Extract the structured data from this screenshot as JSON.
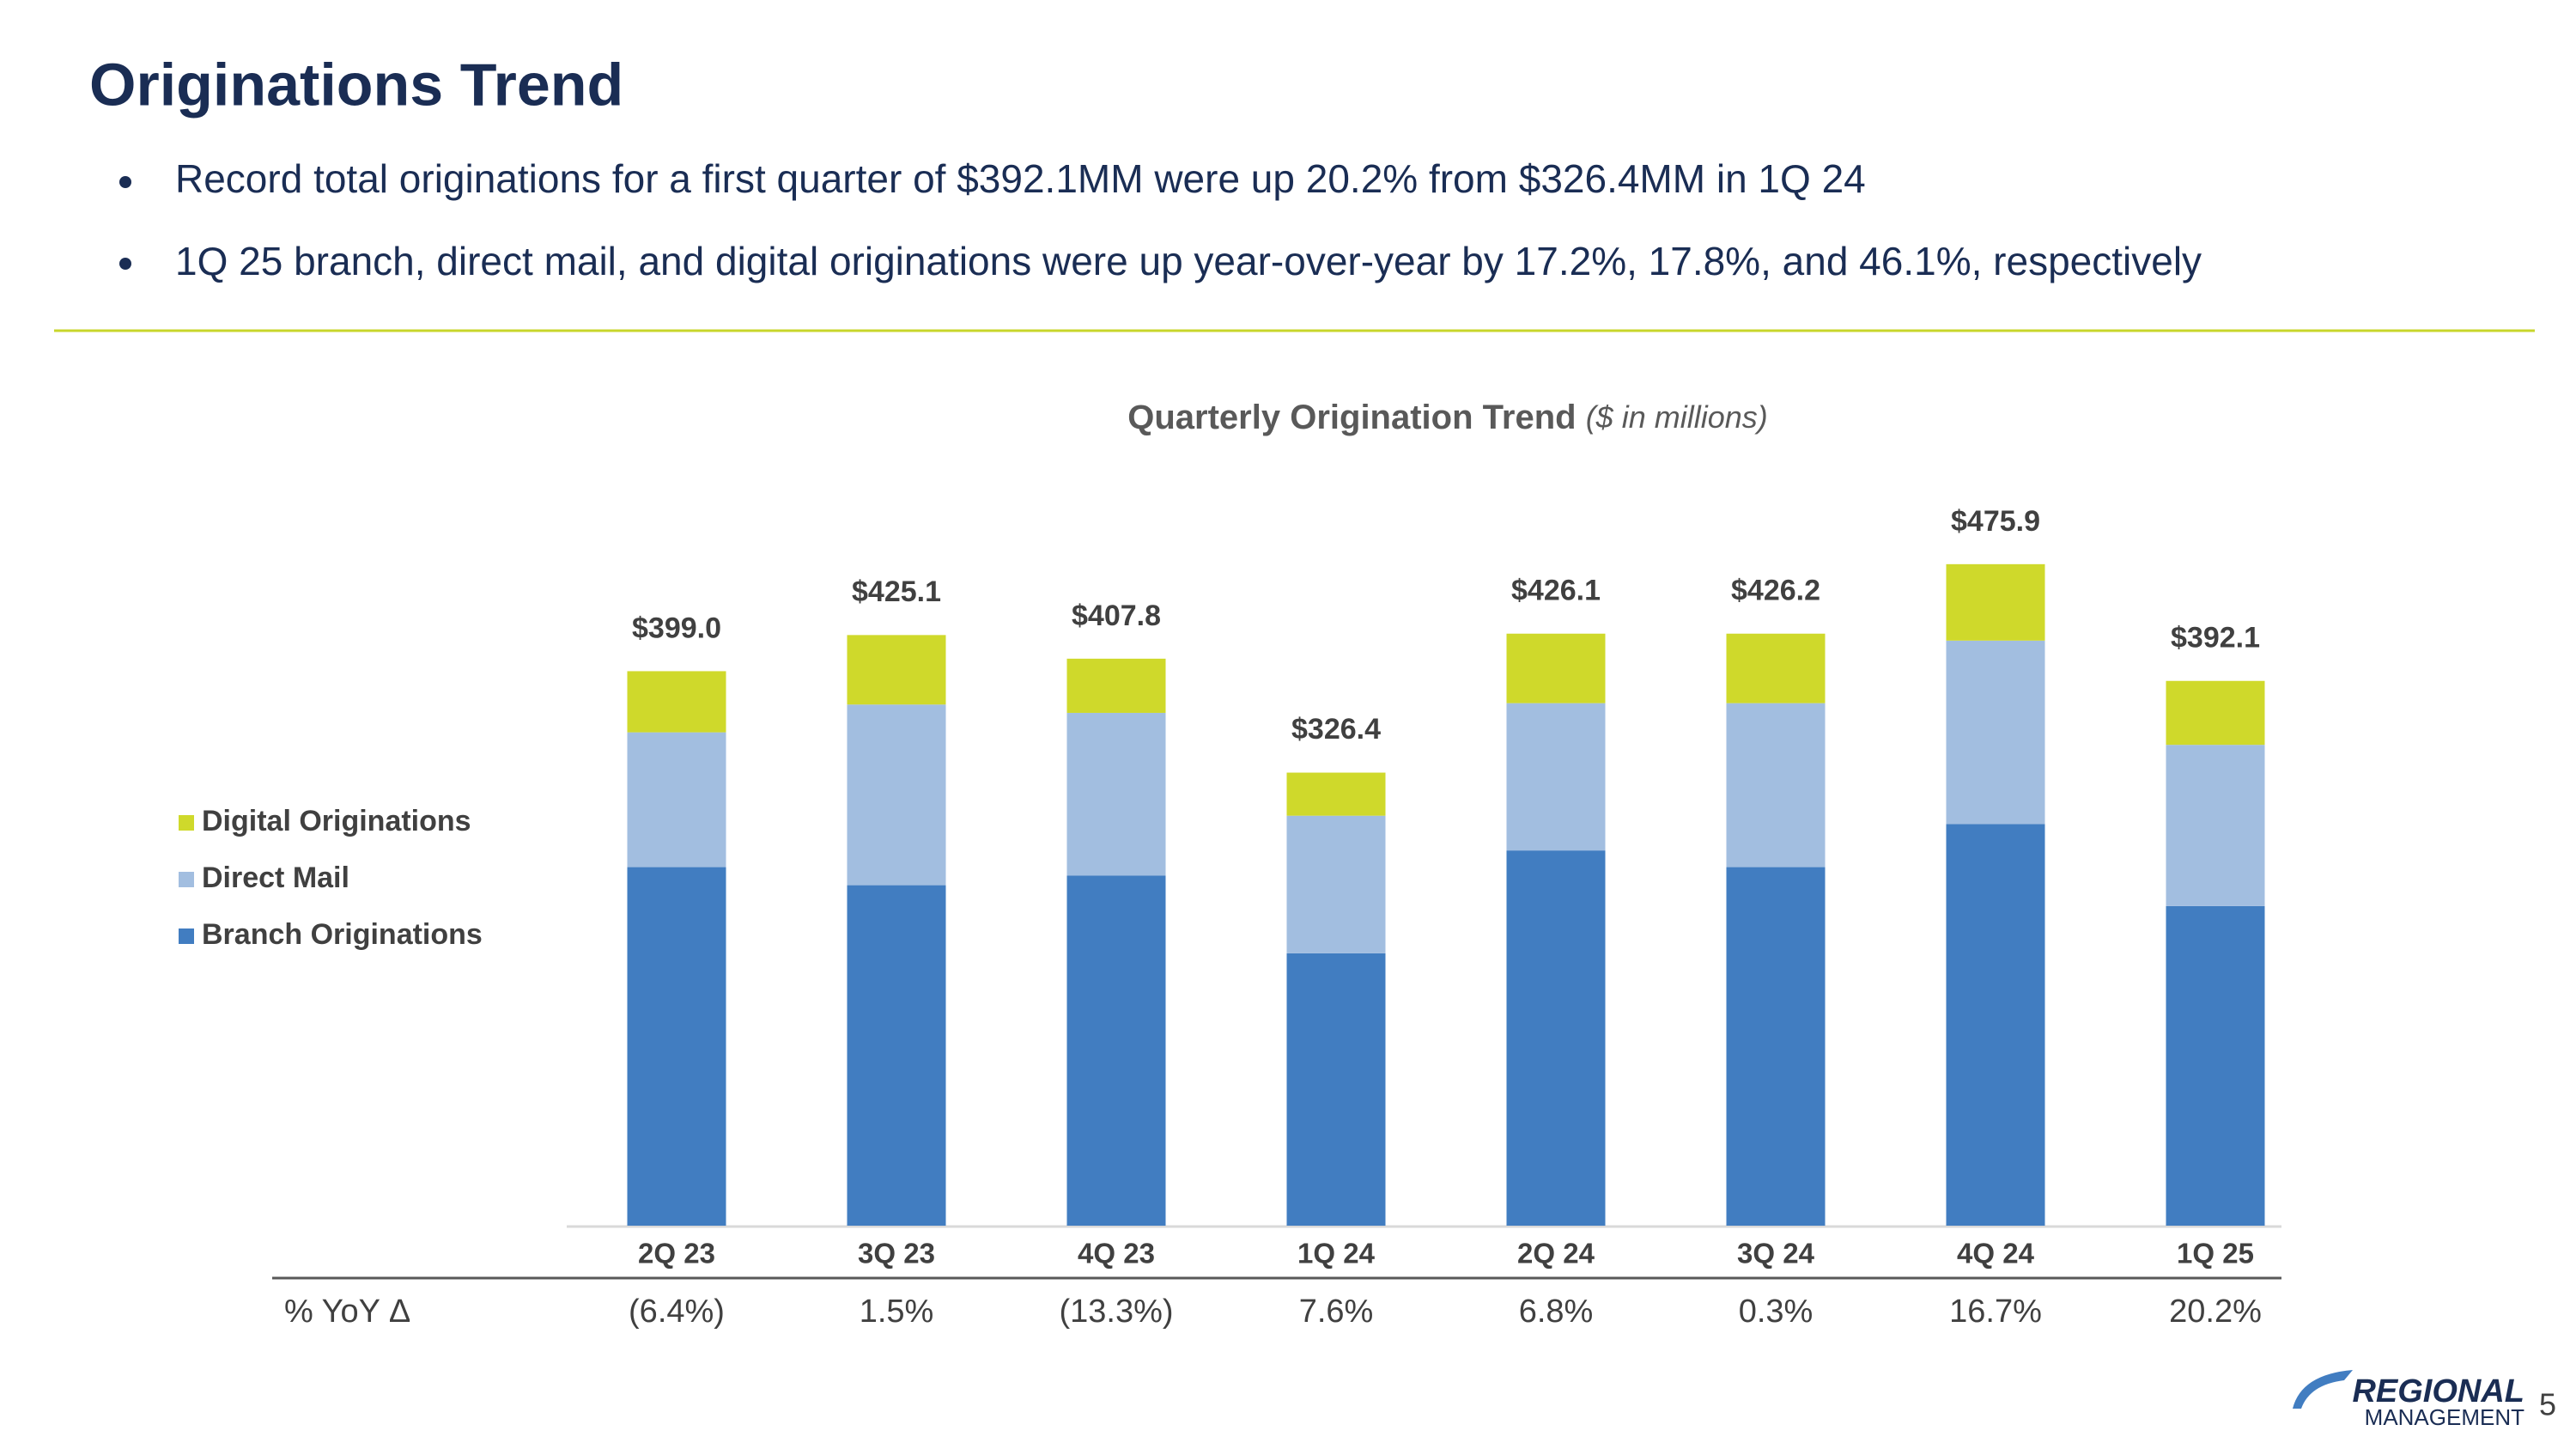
{
  "header": {
    "title": "Originations Trend",
    "bullets": [
      "Record total originations for a first quarter of $392.1MM were up 20.2% from $326.4MM in 1Q 24",
      "1Q 25 branch, direct mail, and digital originations were up year-over-year by 17.2%, 17.8%, and 46.1%, respectively"
    ]
  },
  "chart_data": {
    "type": "stacked_bar",
    "title": "Quarterly Origination Trend",
    "subtitle": "($ in millions)",
    "categories": [
      "2Q 23",
      "3Q 23",
      "4Q 23",
      "1Q 24",
      "2Q 24",
      "3Q 24",
      "4Q 24",
      "1Q 25"
    ],
    "series": [
      {
        "name": "Branch Originations",
        "color": "#417dc1",
        "values": [
          258,
          245,
          252,
          196,
          270,
          258,
          289,
          230
        ]
      },
      {
        "name": "Direct Mail",
        "color": "#a2bee0",
        "values": [
          97,
          130,
          117,
          99,
          106,
          118,
          132,
          116
        ]
      },
      {
        "name": "Digital Originations",
        "color": "#cfd92b",
        "values": [
          44,
          50,
          39,
          31,
          50,
          50,
          55,
          46
        ]
      }
    ],
    "totals": [
      399.0,
      425.1,
      407.8,
      326.4,
      426.1,
      426.2,
      475.9,
      392.1
    ],
    "total_labels": [
      "$399.0",
      "$425.1",
      "$407.8",
      "$326.4",
      "$426.1",
      "$426.2",
      "$475.9",
      "$392.1"
    ],
    "legend": "left"
  },
  "yoy_table": {
    "label": "% YoY Δ",
    "values": [
      "(6.4%)",
      "1.5%",
      "(13.3%)",
      "7.6%",
      "6.8%",
      "0.3%",
      "16.7%",
      "20.2%"
    ]
  },
  "footer": {
    "logo_top": "REGIONAL",
    "logo_bottom": "MANAGEMENT",
    "page": "5"
  }
}
